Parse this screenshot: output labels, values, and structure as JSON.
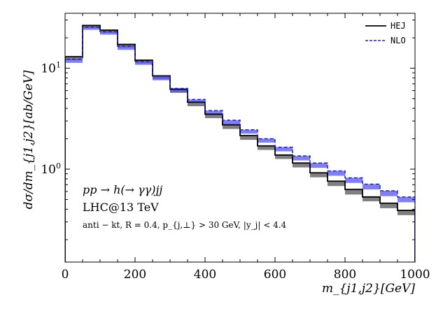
{
  "chart_data": {
    "type": "step-histogram",
    "xlabel": "m_{j1,j2}[GeV]",
    "ylabel": "dσ/dm_{j1,j2}[ab/GeV]",
    "xlim": [
      0,
      1000
    ],
    "ylim": [
      0.12,
      35
    ],
    "yscale": "log",
    "x_ticks": [
      0,
      200,
      400,
      600,
      800,
      1000
    ],
    "x_tick_labels": [
      "0",
      "200",
      "400",
      "600",
      "800",
      "1000"
    ],
    "y_ticks": [
      1,
      10
    ],
    "bin_edges": [
      0,
      50,
      100,
      150,
      200,
      250,
      300,
      350,
      400,
      450,
      500,
      550,
      600,
      650,
      700,
      750,
      800,
      850,
      900,
      950,
      1000
    ],
    "series": [
      {
        "name": "HEJ",
        "color": "#000000",
        "band_color": "#555555",
        "style": "solid",
        "values": [
          13.0,
          26.5,
          23.8,
          17.2,
          12.0,
          8.4,
          6.2,
          4.6,
          3.5,
          2.75,
          2.15,
          1.7,
          1.38,
          1.15,
          0.92,
          0.76,
          0.63,
          0.53,
          0.46,
          0.39
        ],
        "band_low": [
          12.0,
          25.0,
          22.5,
          16.0,
          11.2,
          7.8,
          5.7,
          4.2,
          3.2,
          2.5,
          1.95,
          1.55,
          1.26,
          1.04,
          0.83,
          0.68,
          0.56,
          0.48,
          0.41,
          0.35
        ],
        "band_high": [
          13.0,
          26.5,
          23.8,
          17.2,
          12.0,
          8.4,
          6.2,
          4.6,
          3.5,
          2.75,
          2.15,
          1.7,
          1.38,
          1.15,
          0.92,
          0.76,
          0.63,
          0.53,
          0.46,
          0.39
        ]
      },
      {
        "name": "NLO",
        "color": "#1f1fe0",
        "band_color": "#5555ee",
        "style": "dashed",
        "values": [
          12.3,
          25.5,
          23.0,
          16.5,
          11.7,
          8.3,
          6.3,
          4.9,
          3.8,
          3.05,
          2.45,
          2.0,
          1.65,
          1.35,
          1.15,
          0.96,
          0.82,
          0.71,
          0.61,
          0.53
        ],
        "band_low": [
          11.3,
          24.0,
          21.5,
          15.2,
          10.8,
          7.6,
          5.8,
          4.5,
          3.5,
          2.8,
          2.25,
          1.83,
          1.5,
          1.22,
          1.03,
          0.86,
          0.73,
          0.63,
          0.54,
          0.47
        ],
        "band_high": [
          12.3,
          25.5,
          23.0,
          16.5,
          11.7,
          8.3,
          6.3,
          4.9,
          3.8,
          3.05,
          2.45,
          2.0,
          1.65,
          1.35,
          1.15,
          0.96,
          0.82,
          0.71,
          0.61,
          0.53
        ]
      }
    ],
    "annotations": {
      "process": "pp → h(→ γγ)jj",
      "energy": "LHC@13 TeV",
      "cuts": "anti − kt, R = 0.4, p_{j,⊥} > 30 GeV, |y_j| < 4.4"
    },
    "legend": {
      "position": "top-right",
      "entries": [
        "HEJ",
        "NLO"
      ]
    }
  }
}
